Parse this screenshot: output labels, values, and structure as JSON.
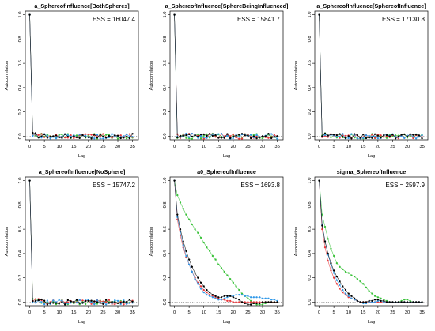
{
  "figure": {
    "xlabel": "Lag",
    "ylabel": "Autocorrelation"
  },
  "colors": {
    "series": [
      "#000000",
      "#e8363a",
      "#3ac23a",
      "#2f98e8"
    ],
    "axis": "#000000"
  },
  "chart_data": [
    {
      "type": "scatter",
      "title": "a_SphereofInfluence[BothSpheres]",
      "ess": "ESS = 16047.4",
      "xlabel": "Lag",
      "ylabel": "Autocorrelation",
      "xlim": [
        -1.5,
        37
      ],
      "ylim": [
        -0.03,
        1.03
      ],
      "xticks": [
        0,
        5,
        10,
        15,
        20,
        25,
        30,
        35
      ],
      "yticks": [
        "0.0",
        "0.2",
        "0.4",
        "0.6",
        "0.8",
        "1.0"
      ],
      "reference_line": 0,
      "decay": [
        1.0,
        0.02,
        0.015,
        0.01,
        0.005
      ],
      "jitter": 0.02
    },
    {
      "type": "scatter",
      "title": "a_SphereofInfluence[SphereBeingInfluenced]",
      "ess": "ESS = 15841.7",
      "xlabel": "Lag",
      "ylabel": "Autocorrelation",
      "xlim": [
        -1.5,
        37
      ],
      "ylim": [
        -0.03,
        1.03
      ],
      "xticks": [
        0,
        5,
        10,
        15,
        20,
        25,
        30,
        35
      ],
      "yticks": [
        "0.0",
        "0.2",
        "0.4",
        "0.6",
        "0.8",
        "1.0"
      ],
      "reference_line": 0,
      "decay": [
        1.0,
        0.01,
        0.01,
        0.02,
        0.01
      ],
      "jitter": 0.022
    },
    {
      "type": "scatter",
      "title": "a_SphereofInfluence[SphereofInfluence]",
      "ess": "ESS = 17130.8",
      "xlabel": "Lag",
      "ylabel": "Autocorrelation",
      "xlim": [
        -1.5,
        37
      ],
      "ylim": [
        -0.03,
        1.03
      ],
      "xticks": [
        0,
        5,
        10,
        15,
        20,
        25,
        30,
        35
      ],
      "yticks": [
        "0.0",
        "0.2",
        "0.4",
        "0.6",
        "0.8",
        "1.0"
      ],
      "reference_line": 0,
      "decay": [
        1.0,
        0.01,
        0.01,
        0.01,
        0.01
      ],
      "jitter": 0.02
    },
    {
      "type": "scatter",
      "title": "a_SphereofInfluence[NoSphere]",
      "ess": "ESS = 15747.2",
      "xlabel": "Lag",
      "ylabel": "Autocorrelation",
      "xlim": [
        -1.5,
        37
      ],
      "ylim": [
        -0.03,
        1.03
      ],
      "xticks": [
        0,
        5,
        10,
        15,
        20,
        25,
        30,
        35
      ],
      "yticks": [
        "0.0",
        "0.2",
        "0.4",
        "0.6",
        "0.8",
        "1.0"
      ],
      "reference_line": 0,
      "decay": [
        1.0,
        0.01,
        0.02,
        0.01,
        0.01
      ],
      "jitter": 0.02
    },
    {
      "type": "scatter",
      "title": "a0_SphereofInfluence",
      "ess": "ESS = 1693.8",
      "xlabel": "Lag",
      "ylabel": "Autocorrelation",
      "xlim": [
        -1.5,
        37
      ],
      "ylim": [
        -0.03,
        1.03
      ],
      "xticks": [
        0,
        5,
        10,
        15,
        20,
        25,
        30,
        35
      ],
      "yticks": [
        "0.0",
        "0.2",
        "0.4",
        "0.6",
        "0.8",
        "1.0"
      ],
      "reference_line": 0,
      "series": [
        {
          "values": [
            1.0,
            0.72,
            0.6,
            0.5,
            0.42,
            0.35,
            0.29,
            0.24,
            0.2,
            0.16,
            0.13,
            0.1,
            0.08,
            0.06,
            0.05,
            0.04,
            0.04,
            0.05,
            0.05,
            0.05,
            0.04,
            0.03,
            0.02,
            0.0,
            -0.01,
            -0.02,
            -0.02,
            -0.01,
            -0.01,
            -0.01,
            0.0,
            0.0,
            0.0,
            0.0,
            0.0,
            0.0
          ]
        },
        {
          "values": [
            1.0,
            0.68,
            0.55,
            0.45,
            0.37,
            0.31,
            0.25,
            0.2,
            0.16,
            0.13,
            0.1,
            0.08,
            0.06,
            0.05,
            0.04,
            0.03,
            0.02,
            0.02,
            0.01,
            0.01,
            0.0,
            0.0,
            0.0,
            0.0,
            0.0,
            0.0,
            0.0,
            0.0,
            0.0,
            0.0,
            0.0,
            0.0,
            0.0,
            0.0,
            0.0,
            0.0
          ]
        },
        {
          "values": [
            1.0,
            0.88,
            0.82,
            0.77,
            0.72,
            0.68,
            0.64,
            0.6,
            0.57,
            0.53,
            0.49,
            0.45,
            0.42,
            0.38,
            0.35,
            0.31,
            0.28,
            0.25,
            0.22,
            0.19,
            0.16,
            0.13,
            0.1,
            0.07,
            0.05,
            0.03,
            0.01,
            -0.01,
            -0.02,
            -0.02,
            -0.02,
            -0.01,
            0.0,
            0.0,
            0.0,
            0.0
          ]
        },
        {
          "values": [
            1.0,
            0.7,
            0.58,
            0.47,
            0.38,
            0.31,
            0.25,
            0.19,
            0.15,
            0.11,
            0.08,
            0.06,
            0.05,
            0.04,
            0.03,
            0.02,
            0.02,
            0.03,
            0.04,
            0.05,
            0.05,
            0.06,
            0.06,
            0.06,
            0.05,
            0.05,
            0.04,
            0.04,
            0.04,
            0.04,
            0.03,
            0.03,
            0.03,
            0.02,
            0.02,
            0.01
          ]
        }
      ]
    },
    {
      "type": "scatter",
      "title": "sigma_SphereofInfluence",
      "ess": "ESS = 2597.9",
      "xlabel": "Lag",
      "ylabel": "Autocorrelation",
      "xlim": [
        -1.5,
        37
      ],
      "ylim": [
        -0.03,
        1.03
      ],
      "xticks": [
        0,
        5,
        10,
        15,
        20,
        25,
        30,
        35
      ],
      "yticks": [
        "0.0",
        "0.2",
        "0.4",
        "0.6",
        "0.8",
        "1.0"
      ],
      "reference_line": 0,
      "series": [
        {
          "values": [
            1.0,
            0.63,
            0.5,
            0.4,
            0.32,
            0.26,
            0.21,
            0.17,
            0.13,
            0.1,
            0.07,
            0.05,
            0.03,
            0.01,
            0.0,
            0.0,
            0.0,
            0.01,
            0.01,
            0.02,
            0.02,
            0.01,
            0.01,
            0.0,
            0.0,
            0.0,
            0.0,
            0.0,
            0.0,
            0.0,
            0.0,
            0.0,
            0.0,
            0.0,
            0.0,
            0.0
          ]
        },
        {
          "values": [
            1.0,
            0.6,
            0.45,
            0.34,
            0.26,
            0.2,
            0.15,
            0.11,
            0.08,
            0.06,
            0.04,
            0.03,
            0.02,
            0.01,
            0.0,
            0.0,
            0.0,
            0.0,
            0.0,
            0.0,
            0.0,
            0.0,
            0.0,
            0.0,
            0.0,
            0.0,
            0.0,
            0.0,
            0.0,
            0.0,
            0.0,
            0.0,
            0.0,
            0.0,
            0.0,
            0.0
          ]
        },
        {
          "values": [
            1.0,
            0.72,
            0.62,
            0.52,
            0.44,
            0.38,
            0.32,
            0.29,
            0.27,
            0.25,
            0.24,
            0.22,
            0.21,
            0.19,
            0.17,
            0.15,
            0.12,
            0.09,
            0.07,
            0.05,
            0.04,
            0.03,
            0.02,
            0.01,
            0.0,
            0.0,
            0.0,
            0.0,
            0.01,
            0.02,
            0.02,
            0.01,
            0.0,
            0.0,
            0.0,
            0.0
          ]
        },
        {
          "values": [
            1.0,
            0.64,
            0.5,
            0.39,
            0.31,
            0.24,
            0.18,
            0.14,
            0.1,
            0.07,
            0.05,
            0.03,
            0.02,
            0.01,
            0.0,
            -0.01,
            -0.01,
            0.0,
            0.0,
            0.0,
            0.01,
            0.01,
            0.0,
            0.0,
            0.0,
            0.0,
            0.0,
            0.0,
            0.0,
            0.0,
            0.0,
            0.0,
            0.0,
            0.0,
            0.0,
            0.0
          ]
        }
      ]
    }
  ]
}
